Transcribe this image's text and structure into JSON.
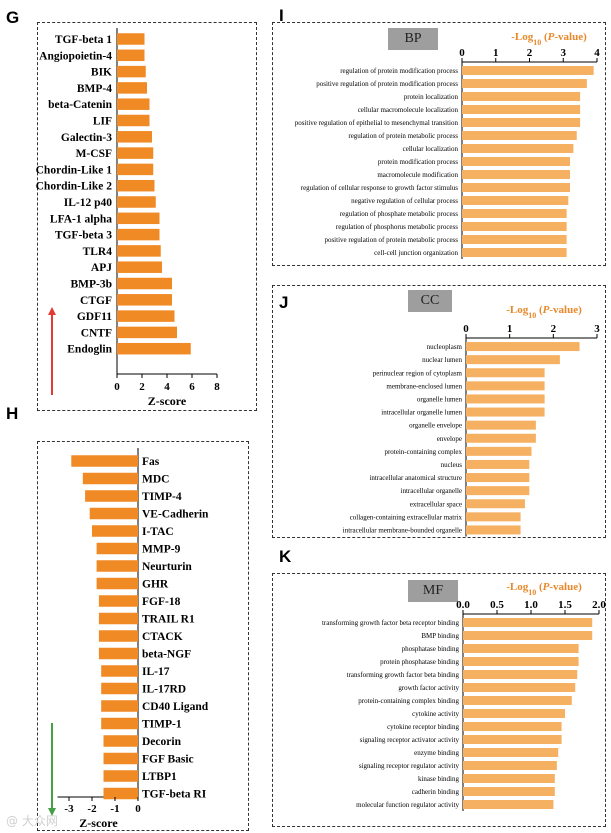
{
  "panels": {
    "G": "G",
    "H": "H",
    "I": "I",
    "J": "J",
    "K": "K"
  },
  "colors": {
    "bar": "#f08a24",
    "bar_light": "#f5b061",
    "axis_title": "#e8882a",
    "arrow_up": "#e53935",
    "arrow_down": "#43a047",
    "tag": "#9e9e9e"
  },
  "watermark": "@ 大众网",
  "chart_data": [
    {
      "id": "G",
      "type": "bar",
      "orientation": "horizontal",
      "categories": [
        "TGF-beta 1",
        "Angiopoietin-4",
        "BIK",
        "BMP-4",
        "beta-Catenin",
        "LIF",
        "Galectin-3",
        "M-CSF",
        "Chordin-Like 1",
        "Chordin-Like 2",
        "IL-12 p40",
        "LFA-1 alpha",
        "TGF-beta 3",
        "TLR4",
        "APJ",
        "BMP-3b",
        "CTGF",
        "GDF11",
        "CNTF",
        "Endoglin"
      ],
      "values": [
        2.2,
        2.2,
        2.3,
        2.4,
        2.6,
        2.6,
        2.8,
        2.9,
        2.9,
        3.0,
        3.1,
        3.4,
        3.4,
        3.5,
        3.6,
        4.4,
        4.4,
        4.6,
        4.8,
        5.9
      ],
      "xlabel": "Z-score",
      "xlim": [
        0,
        8
      ],
      "xticks": [
        "0",
        "2",
        "4",
        "6",
        "8"
      ]
    },
    {
      "id": "H",
      "type": "bar",
      "orientation": "horizontal",
      "categories": [
        "Fas",
        "MDC",
        "TIMP-4",
        "VE-Cadherin",
        "I-TAC",
        "MMP-9",
        "Neurturin",
        "GHR",
        "FGF-18",
        "TRAIL R1",
        "CTACK",
        "beta-NGF",
        "IL-17",
        "IL-17RD",
        "CD40 Ligand",
        "TIMP-1",
        "Decorin",
        "FGF Basic",
        "LTBP1",
        "TGF-beta RI"
      ],
      "values": [
        -2.9,
        -2.4,
        -2.3,
        -2.1,
        -2.0,
        -1.8,
        -1.8,
        -1.8,
        -1.7,
        -1.7,
        -1.7,
        -1.7,
        -1.6,
        -1.6,
        -1.6,
        -1.6,
        -1.5,
        -1.5,
        -1.5,
        -1.5
      ],
      "xlabel": "Z-score",
      "xlim": [
        -3.5,
        0
      ],
      "xticks": [
        "-3",
        "-2",
        "-1",
        "0"
      ]
    },
    {
      "id": "I",
      "type": "bar",
      "orientation": "horizontal",
      "tag": "BP",
      "xlabel": "-Log10 (P-value)",
      "xlabel_parts": {
        "pre": "-Log",
        "sub": "10",
        "mid": " (",
        "it": "P",
        "post": "-value)"
      },
      "xlim": [
        0,
        4
      ],
      "xticks": [
        "0",
        "1",
        "2",
        "3",
        "4"
      ],
      "categories": [
        "regulation of protein modification process",
        "positive regulation of protein modification process",
        "protein localization",
        "cellular macromolecule localization",
        "positive regulation of epithelial to mesenchymal transition",
        "regulation of protein metabolic process",
        "cellular localization",
        "protein modification process",
        "macromolecule modification",
        "regulation of cellular response to growth factor stimulus",
        "negative regulation of cellular process",
        "regulation of phosphate metabolic process",
        "regulation of phosphorus metabolic process",
        "positive regulation of protein metabolic process",
        "cell-cell junction organization"
      ],
      "values": [
        3.9,
        3.7,
        3.5,
        3.5,
        3.5,
        3.4,
        3.3,
        3.2,
        3.2,
        3.2,
        3.15,
        3.1,
        3.1,
        3.1,
        3.1
      ]
    },
    {
      "id": "J",
      "type": "bar",
      "orientation": "horizontal",
      "tag": "CC",
      "xlabel": "-Log10 (P-value)",
      "xlabel_parts": {
        "pre": "-Log",
        "sub": "10",
        "mid": " (",
        "it": "P",
        "post": "-value)"
      },
      "xlim": [
        0,
        3
      ],
      "xticks": [
        "0",
        "1",
        "2",
        "3"
      ],
      "categories": [
        "nucleoplasm",
        "nuclear lumen",
        "perinuclear region of cytoplasm",
        "membrane-enclosed lumen",
        "organelle lumen",
        "intracellular organelle lumen",
        "organelle envelope",
        "envelope",
        "protein-containing complex",
        "nucleus",
        "intracellular anatomical structure",
        "intracellular organelle",
        "extracellular space",
        "collagen-containing extracellular matrix",
        "intracellular membrane-bounded organelle"
      ],
      "values": [
        2.6,
        2.15,
        1.8,
        1.8,
        1.8,
        1.8,
        1.6,
        1.6,
        1.5,
        1.45,
        1.45,
        1.45,
        1.35,
        1.25,
        1.25
      ]
    },
    {
      "id": "K",
      "type": "bar",
      "orientation": "horizontal",
      "tag": "MF",
      "xlabel": "-Log10 (P-value)",
      "xlabel_parts": {
        "pre": "-Log",
        "sub": "10",
        "mid": " (",
        "it": "P",
        "post": "-value)"
      },
      "xlim": [
        0,
        2.0
      ],
      "xticks": [
        "0.0",
        "0.5",
        "1.0",
        "1.5",
        "2.0"
      ],
      "categories": [
        "transforming growth factor beta receptor binding",
        "BMP binding",
        "phosphatase binding",
        "protein phosphatase binding",
        "transforming growth factor beta binding",
        "growth factor activity",
        "protein-containing complex binding",
        "cytokine activity",
        "cytokine receptor binding",
        "signaling receptor activator activity",
        "enzyme binding",
        "signaling receptor regulator activity",
        "kinase binding",
        "cadherin binding",
        "molecular function regulator activity"
      ],
      "values": [
        1.9,
        1.9,
        1.7,
        1.7,
        1.68,
        1.65,
        1.6,
        1.5,
        1.45,
        1.45,
        1.4,
        1.38,
        1.35,
        1.35,
        1.33
      ]
    }
  ]
}
